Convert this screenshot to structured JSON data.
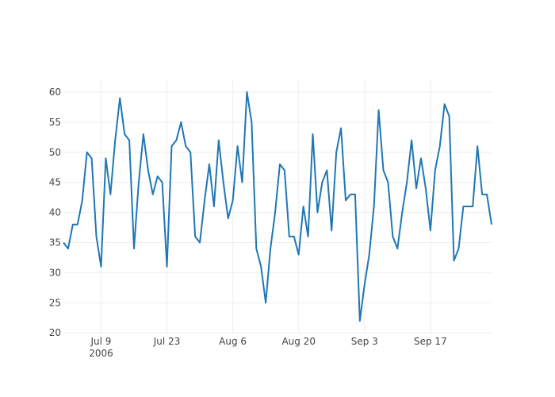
{
  "chart_data": {
    "type": "line",
    "x": [
      "2006-07-01",
      "2006-07-02",
      "2006-07-03",
      "2006-07-04",
      "2006-07-05",
      "2006-07-06",
      "2006-07-07",
      "2006-07-08",
      "2006-07-09",
      "2006-07-10",
      "2006-07-11",
      "2006-07-12",
      "2006-07-13",
      "2006-07-14",
      "2006-07-15",
      "2006-07-16",
      "2006-07-17",
      "2006-07-18",
      "2006-07-19",
      "2006-07-20",
      "2006-07-21",
      "2006-07-22",
      "2006-07-23",
      "2006-07-24",
      "2006-07-25",
      "2006-07-26",
      "2006-07-27",
      "2006-07-28",
      "2006-07-29",
      "2006-07-30",
      "2006-07-31",
      "2006-08-01",
      "2006-08-02",
      "2006-08-03",
      "2006-08-04",
      "2006-08-05",
      "2006-08-06",
      "2006-08-07",
      "2006-08-08",
      "2006-08-09",
      "2006-08-10",
      "2006-08-11",
      "2006-08-12",
      "2006-08-13",
      "2006-08-14",
      "2006-08-15",
      "2006-08-16",
      "2006-08-17",
      "2006-08-18",
      "2006-08-19",
      "2006-08-20",
      "2006-08-21",
      "2006-08-22",
      "2006-08-23",
      "2006-08-24",
      "2006-08-25",
      "2006-08-26",
      "2006-08-27",
      "2006-08-28",
      "2006-08-29",
      "2006-08-30",
      "2006-08-31",
      "2006-09-01",
      "2006-09-02",
      "2006-09-03",
      "2006-09-04",
      "2006-09-05",
      "2006-09-06",
      "2006-09-07",
      "2006-09-08",
      "2006-09-09",
      "2006-09-10",
      "2006-09-11",
      "2006-09-12",
      "2006-09-13",
      "2006-09-14",
      "2006-09-15",
      "2006-09-16",
      "2006-09-17",
      "2006-09-18",
      "2006-09-19",
      "2006-09-20",
      "2006-09-21",
      "2006-09-22",
      "2006-09-23",
      "2006-09-24",
      "2006-09-25",
      "2006-09-26",
      "2006-09-27",
      "2006-09-28",
      "2006-09-29",
      "2006-09-30"
    ],
    "series": [
      {
        "color": "#1f77b4",
        "values": [
          35,
          34,
          38,
          38,
          42,
          50,
          49,
          36,
          31,
          49,
          43,
          52,
          59,
          53,
          52,
          34,
          45,
          53,
          47,
          43,
          46,
          45,
          31,
          51,
          52,
          55,
          51,
          50,
          36,
          35,
          42,
          48,
          41,
          52,
          45,
          39,
          42,
          51,
          45,
          60,
          55,
          34,
          31,
          25,
          34,
          40,
          48,
          47,
          36,
          36,
          33,
          41,
          36,
          53,
          40,
          45,
          47,
          37,
          50,
          54,
          42,
          43,
          43,
          22,
          28,
          33,
          41,
          57,
          47,
          45,
          36,
          34,
          40,
          45,
          52,
          44,
          49,
          44,
          37,
          47,
          51,
          58,
          56,
          32,
          34,
          41,
          41,
          41,
          51,
          43,
          43,
          38
        ]
      }
    ],
    "xlim": [
      "2006-07-01",
      "2006-09-30"
    ],
    "xticks": [
      {
        "value": "2006-07-09",
        "label": "Jul 9\n2006"
      },
      {
        "value": "2006-07-23",
        "label": "Jul 23"
      },
      {
        "value": "2006-08-06",
        "label": "Aug 6"
      },
      {
        "value": "2006-08-20",
        "label": "Aug 20"
      },
      {
        "value": "2006-09-03",
        "label": "Sep 3"
      },
      {
        "value": "2006-09-17",
        "label": "Sep 17"
      }
    ],
    "ylim": [
      19.9,
      62.1
    ],
    "yticks": [
      20,
      25,
      30,
      35,
      40,
      45,
      50,
      55,
      60
    ],
    "grid": true
  }
}
